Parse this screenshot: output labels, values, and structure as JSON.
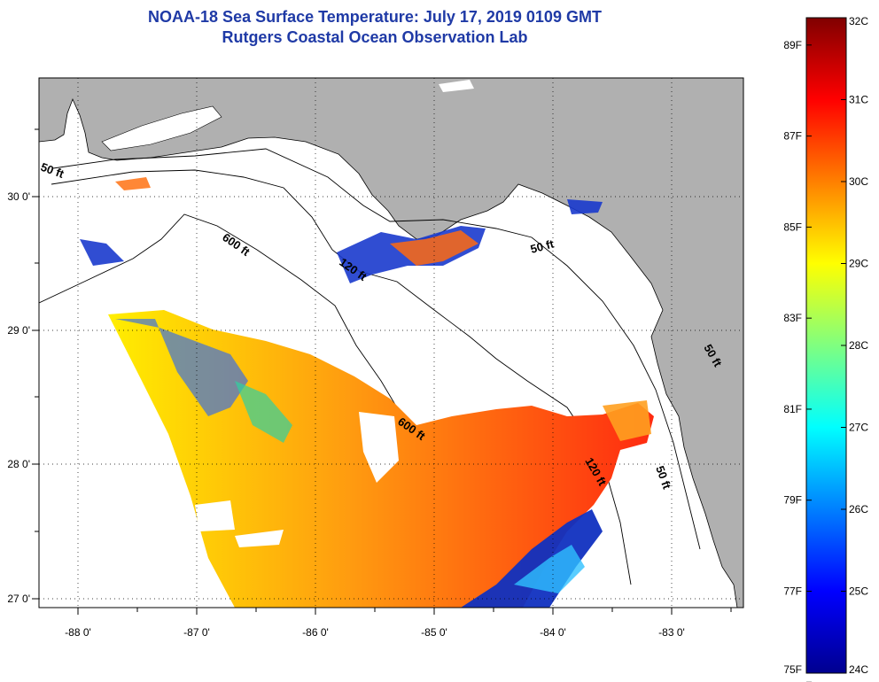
{
  "title": {
    "line1": "NOAA-18 Sea Surface Temperature:  July 17, 2019 0109 GMT",
    "line2": "Rutgers Coastal Ocean Observation Lab"
  },
  "map": {
    "x_ticks": [
      "-88 0'",
      "-87 0'",
      "-86 0'",
      "-85 0'",
      "-84 0'",
      "-83 0'"
    ],
    "y_ticks": [
      "30 0'",
      "29 0'",
      "28 0'",
      "27 0'"
    ],
    "contour_labels": [
      "600 ft",
      "120 ft",
      "50 ft",
      "50 ft",
      "600 ft",
      "120 ft",
      "50 ft",
      "50 ft"
    ],
    "land_color": "#b0b0b0",
    "cloud_color": "#ffffff"
  },
  "colorbar": {
    "celsius": [
      "32C",
      "31C",
      "30C",
      "29C",
      "28C",
      "27C",
      "26C",
      "25C",
      "24C"
    ],
    "fahrenheit": [
      "89F",
      "87F",
      "85F",
      "83F",
      "81F",
      "79F",
      "77F",
      "75F"
    ],
    "range_c": [
      24,
      32
    ],
    "range_f": [
      75,
      89.6
    ],
    "scale": "jet"
  }
}
